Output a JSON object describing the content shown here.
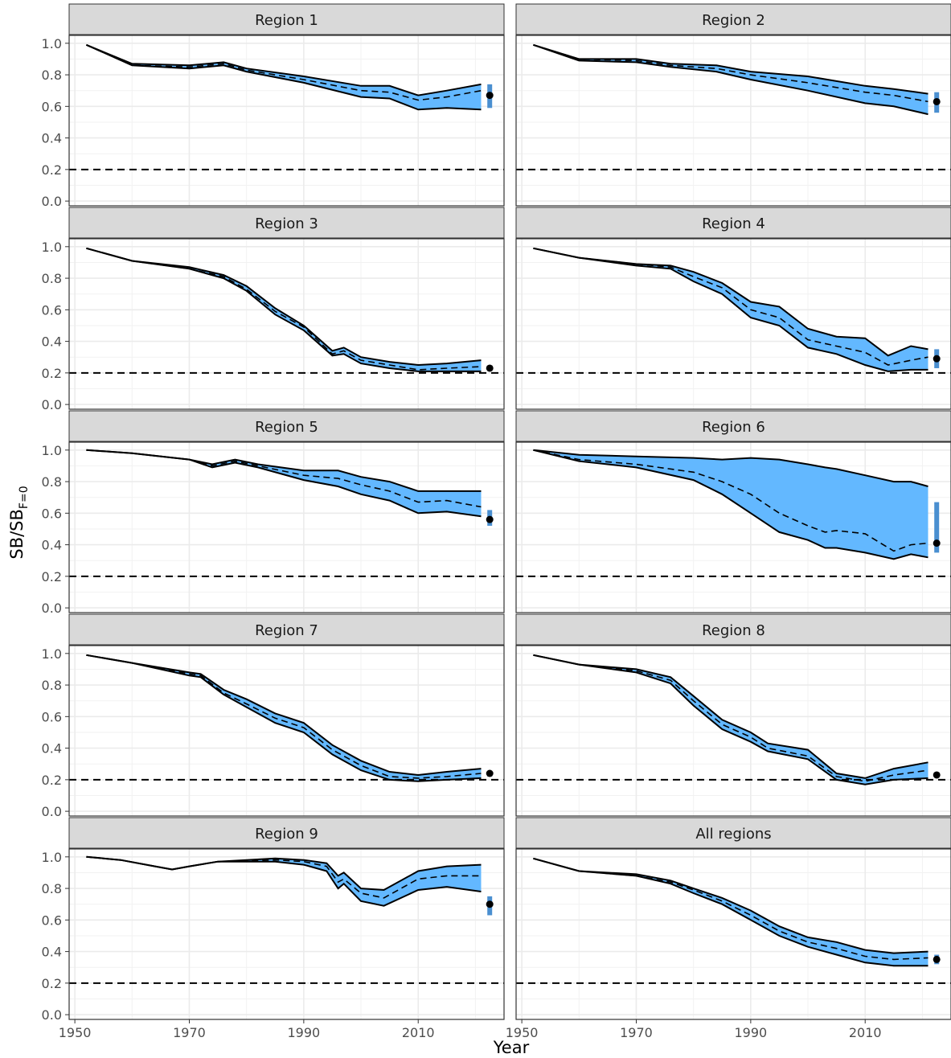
{
  "figure": {
    "xlabel": "Year",
    "ylabel_main": "SB/SB",
    "ylabel_sub": "F=0",
    "reference_line_y": 0.2,
    "xlim": [
      1949,
      2025
    ],
    "ylim": [
      -0.03,
      1.05
    ],
    "x_ticks": [
      "1950",
      "1970",
      "1990",
      "2010"
    ],
    "x_tick_values": [
      1950,
      1970,
      1990,
      2010
    ],
    "y_ticks": [
      "0.0",
      "0.2",
      "0.4",
      "0.6",
      "0.8",
      "1.0"
    ],
    "y_tick_values": [
      0,
      0.2,
      0.4,
      0.6,
      0.8,
      1.0
    ],
    "colors": {
      "band": "#63b8ff",
      "band_dark": "#4a8fd0",
      "strip": "#d9d9d9",
      "line": "#000000",
      "grid": "#ebebeb",
      "panel_border": "#333333"
    }
  },
  "chart_data": [
    {
      "type": "area",
      "title": "Region 1",
      "x": [
        1952,
        1960,
        1970,
        1976,
        1980,
        1990,
        2000,
        2005,
        2010,
        2015,
        2021
      ],
      "series": [
        {
          "values": [
            0.99,
            0.86,
            0.85,
            0.87,
            0.83,
            0.77,
            0.7,
            0.69,
            0.64,
            0.66,
            0.7
          ]
        },
        {
          "values": [
            0.99,
            0.87,
            0.86,
            0.88,
            0.84,
            0.79,
            0.73,
            0.73,
            0.67,
            0.7,
            0.74
          ]
        },
        {
          "values": [
            0.99,
            0.86,
            0.84,
            0.86,
            0.82,
            0.75,
            0.66,
            0.65,
            0.58,
            0.59,
            0.58
          ]
        }
      ],
      "point": {
        "x": 2022.5,
        "y": 0.67,
        "low": 0.59,
        "high": 0.74
      }
    },
    {
      "type": "area",
      "title": "Region 2",
      "x": [
        1952,
        1960,
        1970,
        1976,
        1984,
        1990,
        2000,
        2010,
        2015,
        2021
      ],
      "series": [
        {
          "values": [
            0.99,
            0.9,
            0.89,
            0.86,
            0.84,
            0.8,
            0.75,
            0.69,
            0.67,
            0.63
          ]
        },
        {
          "values": [
            0.99,
            0.9,
            0.9,
            0.87,
            0.86,
            0.82,
            0.79,
            0.73,
            0.71,
            0.68
          ]
        },
        {
          "values": [
            0.99,
            0.89,
            0.88,
            0.85,
            0.82,
            0.77,
            0.7,
            0.62,
            0.6,
            0.55
          ]
        }
      ],
      "point": {
        "x": 2022.5,
        "y": 0.63,
        "low": 0.56,
        "high": 0.69
      }
    },
    {
      "type": "area",
      "title": "Region 3",
      "x": [
        1952,
        1960,
        1970,
        1976,
        1980,
        1985,
        1990,
        1995,
        1997,
        2000,
        2005,
        2010,
        2015,
        2021
      ],
      "series": [
        {
          "values": [
            0.99,
            0.91,
            0.86,
            0.81,
            0.73,
            0.59,
            0.49,
            0.32,
            0.34,
            0.28,
            0.25,
            0.22,
            0.23,
            0.24
          ]
        },
        {
          "values": [
            0.99,
            0.91,
            0.87,
            0.82,
            0.75,
            0.61,
            0.5,
            0.34,
            0.36,
            0.3,
            0.27,
            0.25,
            0.26,
            0.28
          ]
        },
        {
          "values": [
            0.99,
            0.91,
            0.86,
            0.8,
            0.72,
            0.57,
            0.47,
            0.31,
            0.32,
            0.26,
            0.23,
            0.21,
            0.21,
            0.21
          ]
        }
      ],
      "point": {
        "x": 2022.5,
        "y": 0.23,
        "low": 0.22,
        "high": 0.24
      }
    },
    {
      "type": "area",
      "title": "Region 4",
      "x": [
        1952,
        1960,
        1970,
        1976,
        1980,
        1985,
        1990,
        1995,
        2000,
        2005,
        2010,
        2014,
        2018,
        2021
      ],
      "series": [
        {
          "values": [
            0.99,
            0.93,
            0.89,
            0.87,
            0.81,
            0.74,
            0.6,
            0.55,
            0.41,
            0.37,
            0.33,
            0.25,
            0.28,
            0.3
          ]
        },
        {
          "values": [
            0.99,
            0.93,
            0.89,
            0.88,
            0.84,
            0.77,
            0.65,
            0.62,
            0.48,
            0.43,
            0.42,
            0.31,
            0.37,
            0.35
          ]
        },
        {
          "values": [
            0.99,
            0.93,
            0.88,
            0.86,
            0.78,
            0.7,
            0.55,
            0.5,
            0.36,
            0.32,
            0.25,
            0.21,
            0.22,
            0.22
          ]
        }
      ],
      "point": {
        "x": 2022.5,
        "y": 0.29,
        "low": 0.23,
        "high": 0.35
      }
    },
    {
      "type": "area",
      "title": "Region 5",
      "x": [
        1952,
        1960,
        1970,
        1974,
        1978,
        1982,
        1990,
        1996,
        2000,
        2005,
        2010,
        2015,
        2021
      ],
      "series": [
        {
          "values": [
            1.0,
            0.98,
            0.94,
            0.9,
            0.93,
            0.9,
            0.84,
            0.82,
            0.78,
            0.74,
            0.67,
            0.68,
            0.64
          ]
        },
        {
          "values": [
            1.0,
            0.98,
            0.94,
            0.91,
            0.94,
            0.91,
            0.87,
            0.87,
            0.83,
            0.8,
            0.74,
            0.74,
            0.74
          ]
        },
        {
          "values": [
            1.0,
            0.98,
            0.94,
            0.89,
            0.92,
            0.89,
            0.81,
            0.77,
            0.72,
            0.68,
            0.6,
            0.61,
            0.58
          ]
        }
      ],
      "point": {
        "x": 2022.5,
        "y": 0.56,
        "low": 0.52,
        "high": 0.62
      }
    },
    {
      "type": "area",
      "title": "Region 6",
      "x": [
        1952,
        1960,
        1970,
        1980,
        1985,
        1990,
        1995,
        2000,
        2003,
        2005,
        2010,
        2015,
        2018,
        2021
      ],
      "series": [
        {
          "values": [
            1.0,
            0.94,
            0.91,
            0.86,
            0.8,
            0.72,
            0.6,
            0.52,
            0.48,
            0.49,
            0.47,
            0.36,
            0.4,
            0.41
          ]
        },
        {
          "values": [
            1.0,
            0.97,
            0.96,
            0.95,
            0.94,
            0.95,
            0.94,
            0.91,
            0.89,
            0.88,
            0.84,
            0.8,
            0.8,
            0.77
          ]
        },
        {
          "values": [
            1.0,
            0.93,
            0.89,
            0.81,
            0.72,
            0.6,
            0.48,
            0.43,
            0.38,
            0.38,
            0.35,
            0.31,
            0.34,
            0.32
          ]
        }
      ],
      "point": {
        "x": 2022.5,
        "y": 0.41,
        "low": 0.35,
        "high": 0.67
      }
    },
    {
      "type": "area",
      "title": "Region 7",
      "x": [
        1952,
        1960,
        1970,
        1972,
        1976,
        1980,
        1985,
        1990,
        1995,
        2000,
        2005,
        2010,
        2015,
        2021
      ],
      "series": [
        {
          "values": [
            0.99,
            0.94,
            0.87,
            0.86,
            0.75,
            0.68,
            0.59,
            0.53,
            0.39,
            0.29,
            0.22,
            0.21,
            0.22,
            0.24
          ]
        },
        {
          "values": [
            0.99,
            0.94,
            0.88,
            0.87,
            0.77,
            0.71,
            0.62,
            0.56,
            0.42,
            0.32,
            0.25,
            0.23,
            0.25,
            0.27
          ]
        },
        {
          "values": [
            0.99,
            0.94,
            0.86,
            0.85,
            0.74,
            0.66,
            0.56,
            0.5,
            0.36,
            0.26,
            0.2,
            0.19,
            0.2,
            0.21
          ]
        }
      ],
      "point": {
        "x": 2022.5,
        "y": 0.24,
        "low": 0.22,
        "high": 0.25
      }
    },
    {
      "type": "area",
      "title": "Region 8",
      "x": [
        1952,
        1960,
        1970,
        1976,
        1980,
        1985,
        1990,
        1993,
        2000,
        2005,
        2010,
        2015,
        2021
      ],
      "series": [
        {
          "values": [
            0.99,
            0.93,
            0.89,
            0.83,
            0.7,
            0.55,
            0.47,
            0.4,
            0.35,
            0.22,
            0.19,
            0.23,
            0.26
          ]
        },
        {
          "values": [
            0.99,
            0.93,
            0.9,
            0.85,
            0.73,
            0.58,
            0.5,
            0.43,
            0.39,
            0.24,
            0.21,
            0.27,
            0.31
          ]
        },
        {
          "values": [
            0.99,
            0.93,
            0.88,
            0.81,
            0.67,
            0.52,
            0.44,
            0.38,
            0.33,
            0.2,
            0.17,
            0.2,
            0.21
          ]
        }
      ],
      "point": {
        "x": 2022.5,
        "y": 0.23,
        "low": 0.22,
        "high": 0.24
      }
    },
    {
      "type": "area",
      "title": "Region 9",
      "x": [
        1952,
        1958,
        1964,
        1967,
        1970,
        1975,
        1985,
        1990,
        1994,
        1996,
        1997,
        2000,
        2004,
        2010,
        2015,
        2021
      ],
      "series": [
        {
          "values": [
            1.0,
            0.98,
            0.94,
            0.92,
            0.94,
            0.97,
            0.98,
            0.97,
            0.94,
            0.84,
            0.86,
            0.77,
            0.74,
            0.86,
            0.88,
            0.88
          ]
        },
        {
          "values": [
            1.0,
            0.98,
            0.94,
            0.92,
            0.94,
            0.97,
            0.99,
            0.98,
            0.96,
            0.88,
            0.9,
            0.8,
            0.79,
            0.91,
            0.94,
            0.95
          ]
        },
        {
          "values": [
            1.0,
            0.98,
            0.94,
            0.92,
            0.94,
            0.97,
            0.97,
            0.95,
            0.91,
            0.8,
            0.83,
            0.72,
            0.69,
            0.79,
            0.81,
            0.78
          ]
        }
      ],
      "point": {
        "x": 2022.5,
        "y": 0.7,
        "low": 0.63,
        "high": 0.75
      }
    },
    {
      "type": "area",
      "title": "All regions",
      "x": [
        1952,
        1960,
        1970,
        1976,
        1980,
        1985,
        1990,
        1995,
        2000,
        2005,
        2010,
        2015,
        2021
      ],
      "series": [
        {
          "values": [
            0.99,
            0.91,
            0.88,
            0.84,
            0.79,
            0.72,
            0.63,
            0.53,
            0.46,
            0.42,
            0.37,
            0.35,
            0.36
          ]
        },
        {
          "values": [
            0.99,
            0.91,
            0.89,
            0.85,
            0.8,
            0.74,
            0.66,
            0.56,
            0.49,
            0.46,
            0.41,
            0.39,
            0.4
          ]
        },
        {
          "values": [
            0.99,
            0.91,
            0.88,
            0.83,
            0.77,
            0.7,
            0.6,
            0.5,
            0.43,
            0.38,
            0.33,
            0.31,
            0.31
          ]
        }
      ],
      "point": {
        "x": 2022.5,
        "y": 0.35,
        "low": 0.32,
        "high": 0.38
      }
    }
  ]
}
